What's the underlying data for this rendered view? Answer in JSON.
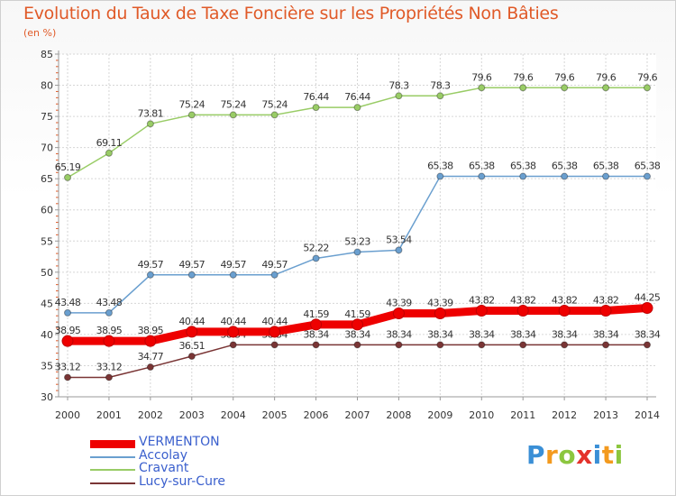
{
  "header": {
    "title": "Evolution du Taux de Taxe Foncière sur les Propriétés Non Bâties",
    "unit": "(en %)"
  },
  "logo": {
    "letters": [
      "P",
      "r",
      "o",
      "x",
      "i",
      "t",
      "i"
    ],
    "colors": [
      "#3a8fd6",
      "#f39a1e",
      "#8cc63f",
      "#e4322b",
      "#3a8fd6",
      "#f39a1e",
      "#8cc63f"
    ]
  },
  "chart_data": {
    "type": "line",
    "title": "Evolution du Taux de Taxe Foncière sur les Propriétés Non Bâties",
    "ylabel": "(en %)",
    "xlabel": "",
    "x": [
      "2000",
      "2001",
      "2002",
      "2003",
      "2004",
      "2005",
      "2006",
      "2007",
      "2008",
      "2009",
      "2010",
      "2011",
      "2012",
      "2013",
      "2014"
    ],
    "ylim": [
      30,
      85
    ],
    "yticks": [
      "30",
      "35",
      "40",
      "45",
      "50",
      "55",
      "60",
      "65",
      "70",
      "75",
      "80",
      "85"
    ],
    "grid": true,
    "legend": "bottom-left",
    "series": [
      {
        "name": "Cravant",
        "color": "#99cc66",
        "values": [
          65.19,
          69.11,
          73.81,
          75.24,
          75.24,
          75.24,
          76.44,
          76.44,
          78.3,
          78.3,
          79.6,
          79.6,
          79.6,
          79.6,
          79.6
        ],
        "labels": [
          "65.19",
          "69.11",
          "73.81",
          "75.24",
          "75.24",
          "75.24",
          "76.44",
          "76.44",
          "78.3",
          "78.3",
          "79.6",
          "79.6",
          "79.6",
          "79.6",
          "79.6"
        ]
      },
      {
        "name": "Accolay",
        "color": "#6a9fcf",
        "values": [
          43.48,
          43.48,
          49.57,
          49.57,
          49.57,
          49.57,
          52.22,
          53.23,
          53.54,
          65.38,
          65.38,
          65.38,
          65.38,
          65.38,
          65.38
        ],
        "labels": [
          "43.48",
          "43.48",
          "49.57",
          "49.57",
          "49.57",
          "49.57",
          "52.22",
          "53.23",
          "53.54",
          "65.38",
          "65.38",
          "65.38",
          "65.38",
          "65.38",
          "65.38"
        ]
      },
      {
        "name": "Lucy-sur-Cure",
        "color": "#7a3535",
        "values": [
          33.12,
          33.12,
          34.77,
          36.51,
          38.34,
          38.34,
          38.34,
          38.34,
          38.34,
          38.34,
          38.34,
          38.34,
          38.34,
          38.34,
          38.34
        ],
        "labels": [
          "33.12",
          "33.12",
          "34.77",
          "36.51",
          "38.34",
          "38.34",
          "38.34",
          "38.34",
          "38.34",
          "38.34",
          "38.34",
          "38.34",
          "38.34",
          "38.34",
          "38.34"
        ]
      },
      {
        "name": "VERMENTON",
        "color": "#ee0000",
        "values": [
          38.95,
          38.95,
          38.95,
          40.44,
          40.44,
          40.44,
          41.59,
          41.59,
          43.39,
          43.39,
          43.82,
          43.82,
          43.82,
          43.82,
          44.25
        ],
        "labels": [
          "38.95",
          "38.95",
          "38.95",
          "40.44",
          "40.44",
          "40.44",
          "41.59",
          "41.59",
          "43.39",
          "43.39",
          "43.82",
          "43.82",
          "43.82",
          "43.82",
          "44.25"
        ]
      }
    ],
    "legend_order": [
      "VERMENTON",
      "Accolay",
      "Cravant",
      "Lucy-sur-Cure"
    ]
  }
}
